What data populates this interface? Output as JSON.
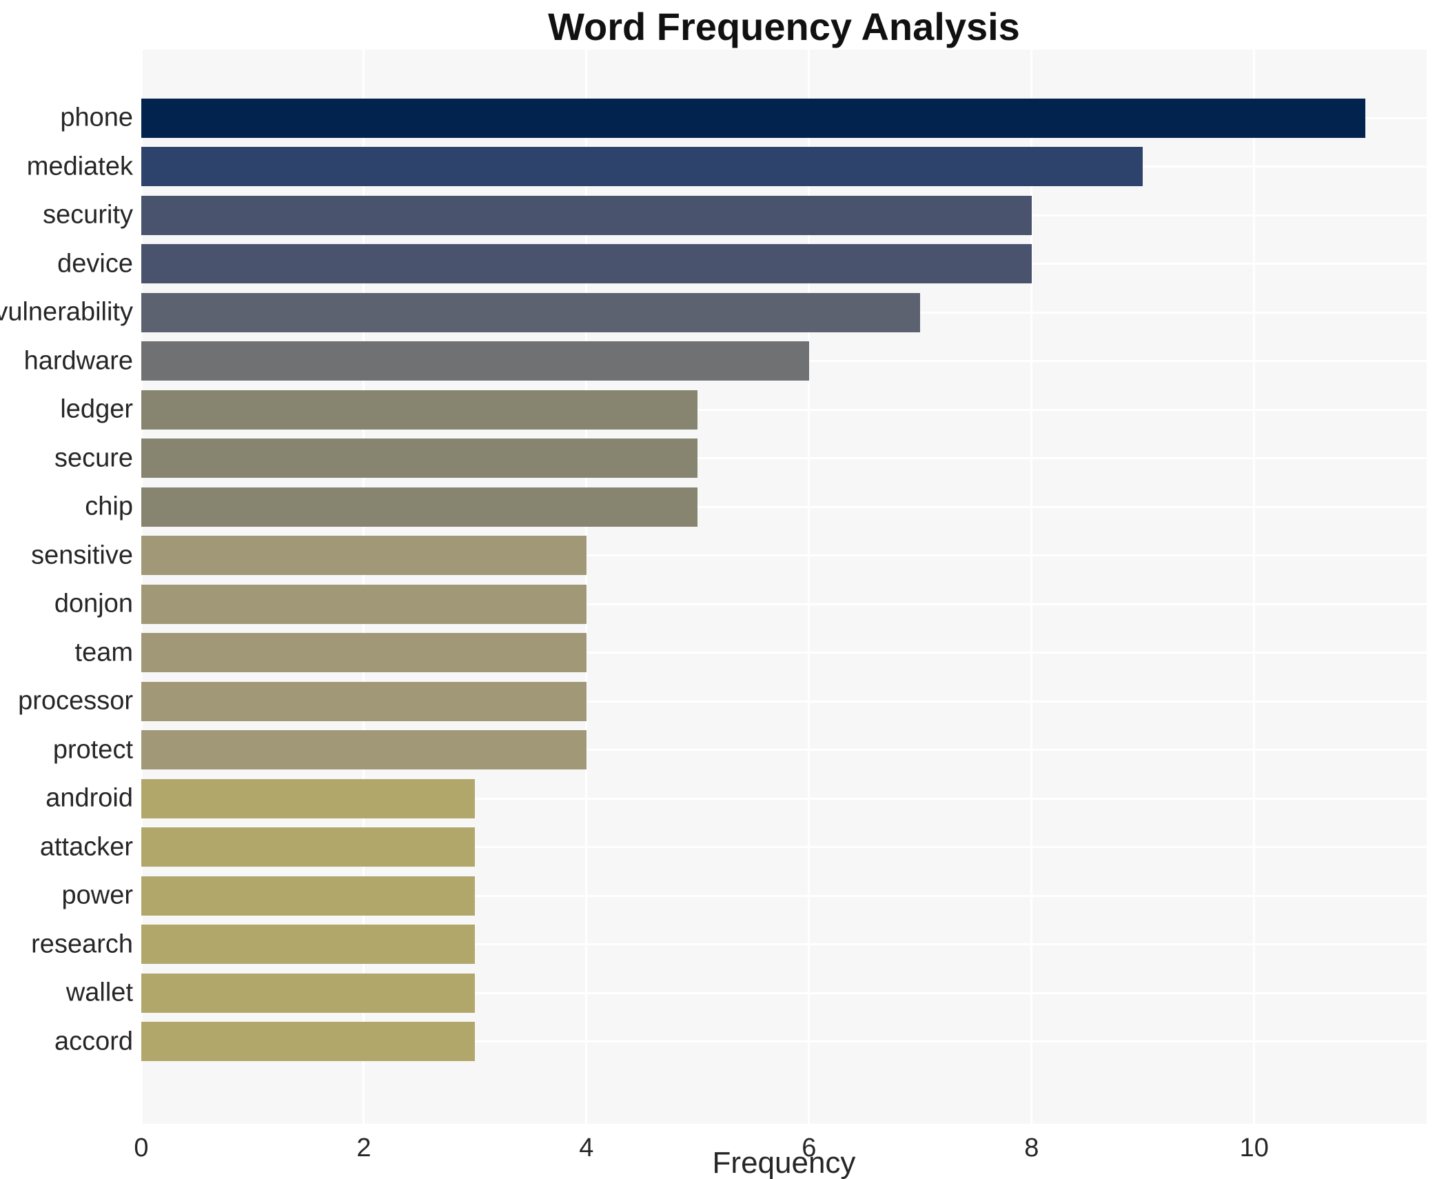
{
  "chart_data": {
    "type": "bar",
    "orientation": "horizontal",
    "title": "Word Frequency Analysis",
    "xlabel": "Frequency",
    "ylabel": "",
    "categories": [
      "phone",
      "mediatek",
      "security",
      "device",
      "vulnerability",
      "hardware",
      "ledger",
      "secure",
      "chip",
      "sensitive",
      "donjon",
      "team",
      "processor",
      "protect",
      "android",
      "attacker",
      "power",
      "research",
      "wallet",
      "accord"
    ],
    "values": [
      11,
      9,
      8,
      8,
      7,
      6,
      5,
      5,
      5,
      4,
      4,
      4,
      4,
      4,
      3,
      3,
      3,
      3,
      3,
      3
    ],
    "bar_colors": [
      "#01234e",
      "#2e436b",
      "#4a536e",
      "#4a536e",
      "#5d6270",
      "#707173",
      "#87856f",
      "#87856f",
      "#87856f",
      "#a09877",
      "#a09877",
      "#a09877",
      "#a09877",
      "#a09877",
      "#b2a76b",
      "#b2a76b",
      "#b2a76b",
      "#b2a76b",
      "#b2a76b",
      "#b2a76b"
    ],
    "xticks": [
      0,
      2,
      4,
      6,
      8,
      10
    ],
    "xlim": [
      0,
      11.55
    ],
    "grid": true,
    "legend": "none",
    "plot_background_color": "#f7f7f8",
    "grid_color": "#ffffff",
    "title_color": "#111111",
    "tick_label_color": "#262626"
  }
}
